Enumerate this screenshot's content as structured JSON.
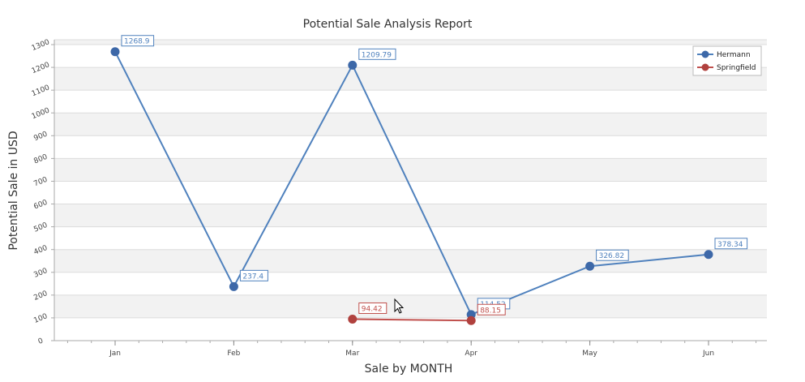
{
  "chart_data": {
    "type": "line",
    "title": "Potential Sale Analysis Report",
    "xlabel": "Sale by MONTH",
    "ylabel": "Potential Sale in USD",
    "categories": [
      "Jan",
      "Feb",
      "Mar",
      "Apr",
      "May",
      "Jun"
    ],
    "ylim": [
      0,
      1300
    ],
    "yticks": [
      0,
      100,
      200,
      300,
      400,
      500,
      600,
      700,
      800,
      900,
      1000,
      1100,
      1200,
      1300
    ],
    "grid": "horizontal alternating bands",
    "legend_position": "top-right",
    "series": [
      {
        "name": "Hermann",
        "color": "#4f81bd",
        "marker_color": "#3d68a8",
        "points": [
          {
            "x": "Jan",
            "y": 1268.9,
            "label": "1268.9"
          },
          {
            "x": "Feb",
            "y": 237.4,
            "label": "237.4"
          },
          {
            "x": "Mar",
            "y": 1209.79,
            "label": "1209.79"
          },
          {
            "x": "Apr",
            "y": 114.52,
            "label": "114.52"
          },
          {
            "x": "May",
            "y": 326.82,
            "label": "326.82"
          },
          {
            "x": "Jun",
            "y": 378.34,
            "label": "378.34"
          }
        ]
      },
      {
        "name": "Springfield",
        "color": "#c0504d",
        "marker_color": "#b0413e",
        "points": [
          {
            "x": "Mar",
            "y": 94.42,
            "label": "94.42"
          },
          {
            "x": "Apr",
            "y": 88.15,
            "label": "88.15"
          }
        ]
      }
    ]
  }
}
